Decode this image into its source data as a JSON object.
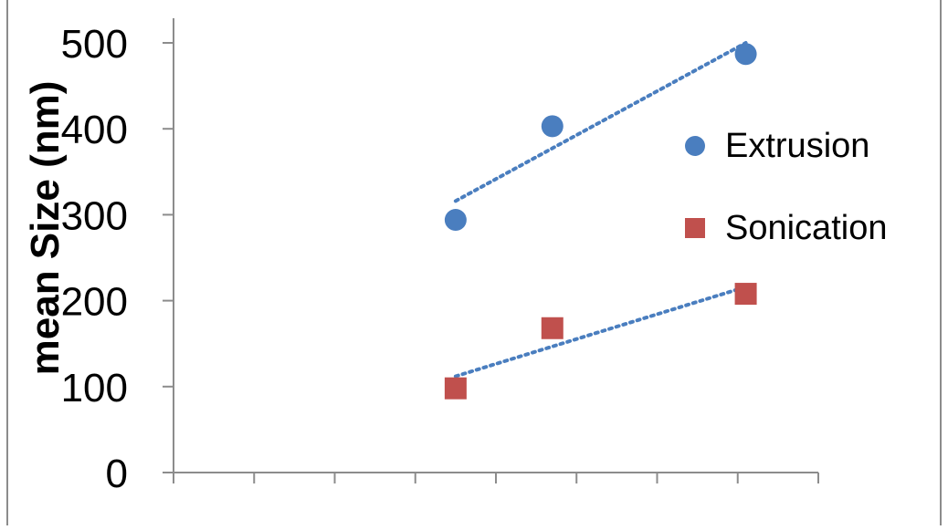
{
  "chart_data": {
    "type": "scatter",
    "title": "",
    "xlabel": "",
    "ylabel": "mean Size (nm)",
    "ylim": [
      0,
      500
    ],
    "yticks": [
      0,
      100,
      200,
      300,
      400,
      500
    ],
    "x_tick_count": 9,
    "grid": false,
    "legend_position": "right",
    "series": [
      {
        "name": "Extrusion",
        "color": "#4a7ebf",
        "marker": "circle",
        "points": [
          {
            "x": 3.5,
            "y": 294
          },
          {
            "x": 4.7,
            "y": 403
          },
          {
            "x": 7.1,
            "y": 487
          }
        ],
        "trendline": {
          "style": "dotted",
          "x_from": 3.5,
          "x_to": 7.1,
          "y_from": 316,
          "y_to": 500
        }
      },
      {
        "name": "Sonication",
        "color": "#c0504d",
        "marker": "square",
        "points": [
          {
            "x": 3.5,
            "y": 98
          },
          {
            "x": 4.7,
            "y": 168
          },
          {
            "x": 7.1,
            "y": 208
          }
        ],
        "trendline": {
          "style": "dotted",
          "x_from": 3.5,
          "x_to": 7.1,
          "y_from": 112,
          "y_to": 216
        }
      }
    ]
  }
}
